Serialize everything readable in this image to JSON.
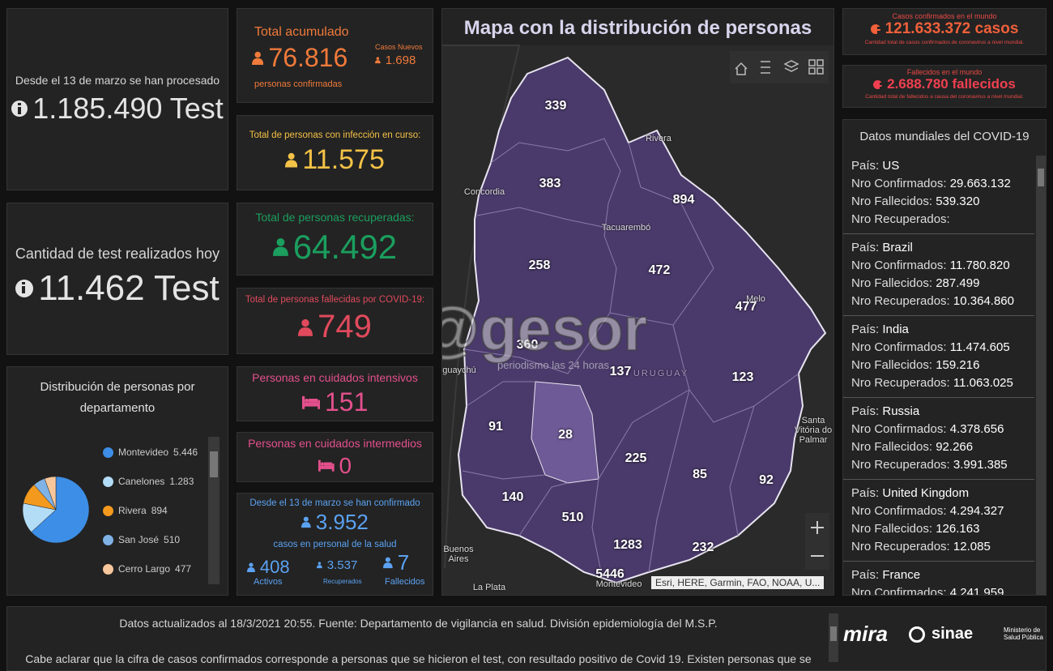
{
  "left": {
    "tests_total": {
      "caption": "Desde el 13 de marzo se han procesado",
      "value": "1.185.490 Test"
    },
    "tests_today": {
      "caption": "Cantidad de test realizados hoy",
      "value": "11.462 Test"
    },
    "distribution": {
      "title": "Distribución de personas por departamento",
      "items": [
        {
          "name": "Montevideo",
          "value": 5446,
          "value_label": "5.446",
          "color": "#3d8ee6"
        },
        {
          "name": "Canelones",
          "value": 1283,
          "value_label": "1.283",
          "color": "#b3dcf7"
        },
        {
          "name": "Rivera",
          "value": 894,
          "value_label": "894",
          "color": "#f39a1e"
        },
        {
          "name": "San José",
          "value": 510,
          "value_label": "510",
          "color": "#7fb2e5"
        },
        {
          "name": "Cerro Largo",
          "value": 477,
          "value_label": "477",
          "color": "#f7c79b"
        }
      ]
    }
  },
  "stats": {
    "acumulado": {
      "title": "Total acumulado",
      "value": "76.816",
      "subtitle": "personas confirmadas",
      "new_label": "Casos Nuevos",
      "new_value": "1.698"
    },
    "en_curso": {
      "title": "Total de personas con infección en curso:",
      "value": "11.575"
    },
    "recuperadas": {
      "title": "Total de personas recuperadas:",
      "value": "64.492"
    },
    "fallecidas": {
      "title": "Total de personas fallecidas por COVID-19:",
      "value": "749"
    },
    "intensivos": {
      "title": "Personas en cuidados intensivos",
      "value": "151"
    },
    "intermedios": {
      "title": "Personas en cuidados intermedios",
      "value": "0"
    },
    "salud": {
      "title": "Desde el 13 de marzo se han confirmado",
      "value": "3.952",
      "subtitle": "casos en personal de la salud",
      "breakdown": [
        {
          "value": "408",
          "label": "Activos"
        },
        {
          "value": "3.537",
          "label": "Recuperados"
        },
        {
          "value": "7",
          "label": "Fallecidos"
        }
      ]
    }
  },
  "map": {
    "title": "Mapa con la distribución de personas",
    "counts": [
      339,
      383,
      894,
      258,
      472,
      477,
      360,
      137,
      123,
      91,
      28,
      225,
      85,
      92,
      140,
      510,
      1283,
      232,
      5446
    ],
    "places": [
      "Concordia",
      "Rivera",
      "Tacuarembó",
      "Melo",
      "Santa Vitória do Palmar",
      "Buenos Aires",
      "La Plata",
      "Montevideo",
      "guaychú",
      "URUGUAY"
    ],
    "watermark": "@gesor",
    "watermark_tagline": "periodismo las 24 horas",
    "attribution": "Esri, HERE, Garmin, FAO, NOAA, U..."
  },
  "world": {
    "confirmed": {
      "title": "Casos confirmados en el mundo",
      "value": "121.633.372 casos",
      "note": "Cantidad total de casos confirmados de coronavirus a nivel mundial."
    },
    "deaths": {
      "title": "Fallecidos en el mundo",
      "value": "2.688.780 fallecidos",
      "note": "Cantidad total de fallecidos a causa del coronavirus a nivel mundial."
    },
    "list_title": "Datos mundiales del COVID-19",
    "countries": [
      {
        "label": "País:",
        "name": "US",
        "rows": [
          {
            "label": "Nro Confirmados:",
            "value": "29.663.132"
          },
          {
            "label": "Nro Fallecidos:",
            "value": "539.320"
          },
          {
            "label": "Nro Recuperados:"
          }
        ]
      },
      {
        "label": "País:",
        "name": "Brazil",
        "rows": [
          {
            "label": "Nro Confirmados:",
            "value": "11.780.820"
          },
          {
            "label": "Nro Fallecidos:",
            "value": "287.499"
          },
          {
            "label": "Nro Recuperados:",
            "value": "10.364.860"
          }
        ]
      },
      {
        "label": "País:",
        "name": "India",
        "rows": [
          {
            "label": "Nro Confirmados:",
            "value": "11.474.605"
          },
          {
            "label": "Nro Fallecidos:",
            "value": "159.216"
          },
          {
            "label": "Nro Recuperados:",
            "value": "11.063.025"
          }
        ]
      },
      {
        "label": "País:",
        "name": "Russia",
        "rows": [
          {
            "label": "Nro Confirmados:",
            "value": "4.378.656"
          },
          {
            "label": "Nro Fallecidos:",
            "value": "92.266"
          },
          {
            "label": "Nro Recuperados:",
            "value": "3.991.385"
          }
        ]
      },
      {
        "label": "País:",
        "name": "United Kingdom",
        "rows": [
          {
            "label": "Nro Confirmados:",
            "value": "4.294.327"
          },
          {
            "label": "Nro Fallecidos:",
            "value": "126.163"
          },
          {
            "label": "Nro Recuperados:",
            "value": "12.085"
          }
        ]
      },
      {
        "label": "País:",
        "name": "France",
        "rows": [
          {
            "label": "Nro Confirmados:",
            "value": "4.241.959"
          }
        ]
      }
    ]
  },
  "footer": {
    "lines": [
      "Datos actualizados al 18/3/2021 20:55. Fuente: Departamento de vigilancia en salud. División epidemiología del M.S.P.",
      "Cabe aclarar que la cifra de casos confirmados corresponde a personas que se hicieron el test, con resultado positivo de Covid 19. Existen personas que se"
    ],
    "logos": [
      "mira",
      "sinae",
      "Ministerio de Salud Pública"
    ]
  }
}
